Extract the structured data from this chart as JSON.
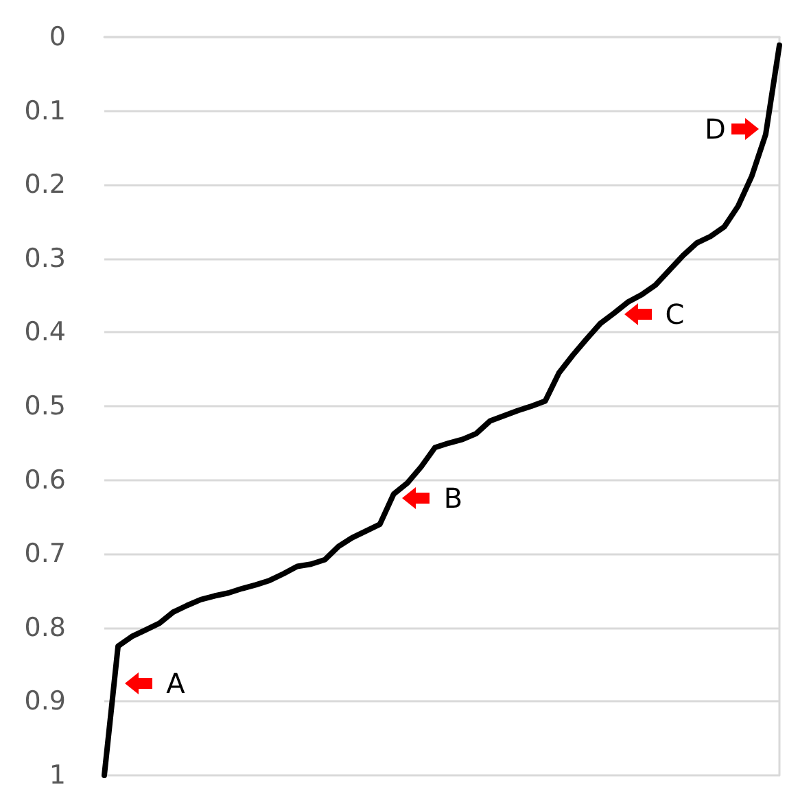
{
  "chart_data": {
    "type": "line",
    "categories": [
      null,
      null,
      null,
      null,
      null,
      null,
      null,
      null,
      null,
      null,
      null,
      null,
      null,
      null,
      null,
      null,
      null,
      null,
      null,
      null,
      null,
      null,
      null,
      null,
      null,
      null,
      null,
      null,
      null,
      null,
      null,
      null,
      null,
      null,
      null,
      null,
      null,
      null,
      null,
      null,
      null,
      null,
      null,
      null,
      null,
      null,
      null,
      null,
      null,
      null
    ],
    "series": [
      {
        "color": "#000000",
        "values": [
          1.0,
          0.825,
          0.812,
          0.803,
          0.794,
          0.779,
          0.77,
          0.762,
          0.757,
          0.753,
          0.747,
          0.742,
          0.736,
          0.727,
          0.717,
          0.714,
          0.708,
          0.69,
          0.678,
          0.669,
          0.66,
          0.619,
          0.604,
          0.582,
          0.556,
          0.55,
          0.545,
          0.537,
          0.52,
          0.513,
          0.506,
          0.5,
          0.493,
          0.455,
          0.431,
          0.409,
          0.388,
          0.374,
          0.359,
          0.349,
          0.336,
          0.316,
          0.296,
          0.279,
          0.27,
          0.257,
          0.229,
          0.188,
          0.132,
          0.011
        ]
      }
    ],
    "ylim": [
      1,
      0
    ],
    "yticks": [
      0,
      0.1,
      0.2,
      0.3,
      0.4,
      0.5,
      0.6,
      0.7,
      0.8,
      0.9,
      1
    ],
    "grid": "y",
    "tick_labels": "y",
    "marker": "none",
    "line_style": "solid",
    "annotations": [
      "A",
      "B",
      "C",
      "D"
    ]
  }
}
